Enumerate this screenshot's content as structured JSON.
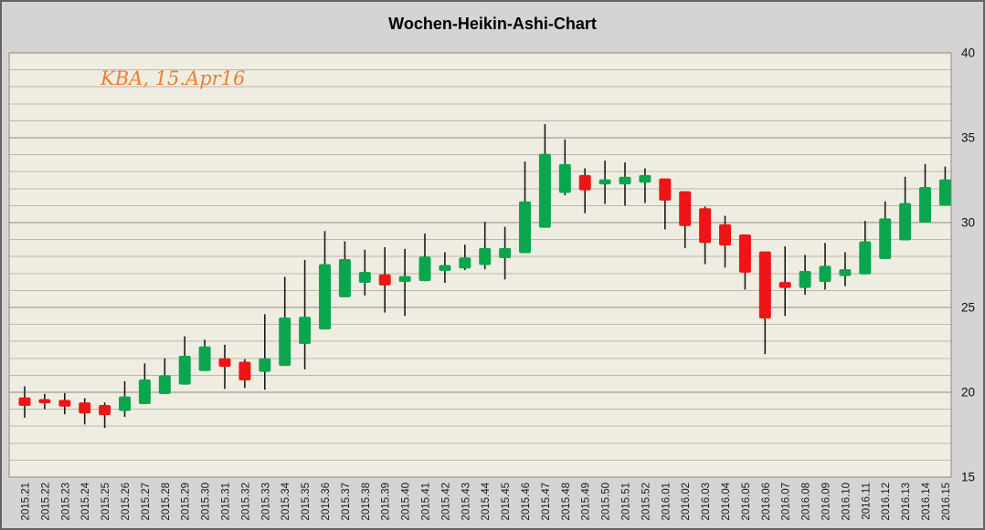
{
  "chart_data": {
    "type": "candlestick",
    "title": "Wochen-Heikin-Ashi-Chart",
    "annotation": "KBA, 15.Apr16",
    "annotation_color": "#ED7D31",
    "xlabel": "",
    "ylabel": "",
    "ylim": [
      15,
      40
    ],
    "y_ticks": [
      15,
      20,
      25,
      30,
      35,
      40
    ],
    "grid_minor_step": 1,
    "grid_major_step": 5,
    "y_axis_position": "right",
    "x_label_rotation": -90,
    "legend": "none",
    "up_color": "#0aa64e",
    "down_color": "#ed1515",
    "wick_color": "#1a1a1a",
    "plot_bg": "#efede1",
    "outer_bg": "#d5d4d2",
    "grid_minor_color": "#bab9af",
    "grid_major_color": "#8a8a85",
    "categories": [
      "2015.21",
      "2015.22",
      "2015.23",
      "2015.24",
      "2015.25",
      "2015.26",
      "2015.27",
      "2015.28",
      "2015.29",
      "2015.30",
      "2015.31",
      "2015.32",
      "2015.33",
      "2015.34",
      "2015.35",
      "2015.36",
      "2015.37",
      "2015.38",
      "2015.39",
      "2015.40",
      "2015.41",
      "2015.42",
      "2015.43",
      "2015.44",
      "2015.45",
      "2015.46",
      "2015.47",
      "2015.48",
      "2015.49",
      "2015.50",
      "2015.51",
      "2015.52",
      "2016.01",
      "2016.02",
      "2016.03",
      "2016.04",
      "2016.05",
      "2016.06",
      "2016.07",
      "2016.08",
      "2016.09",
      "2016.10",
      "2016.11",
      "2016.12",
      "2016.13",
      "2016.14",
      "2016.15"
    ],
    "ohlc": [
      [
        19.7,
        20.35,
        18.5,
        19.2
      ],
      [
        19.6,
        19.9,
        19.0,
        19.35
      ],
      [
        19.55,
        19.95,
        18.7,
        19.15
      ],
      [
        19.4,
        19.65,
        18.1,
        18.75
      ],
      [
        19.25,
        19.4,
        17.9,
        18.65
      ],
      [
        18.9,
        20.65,
        18.55,
        19.75
      ],
      [
        19.3,
        21.7,
        19.3,
        20.75
      ],
      [
        19.9,
        22.0,
        19.9,
        21.0
      ],
      [
        20.45,
        23.3,
        20.45,
        22.15
      ],
      [
        21.25,
        23.1,
        21.25,
        22.7
      ],
      [
        22.0,
        22.8,
        20.2,
        21.5
      ],
      [
        21.8,
        21.95,
        20.25,
        20.7
      ],
      [
        21.2,
        24.6,
        20.15,
        22.0
      ],
      [
        21.55,
        26.8,
        21.55,
        24.4
      ],
      [
        22.85,
        27.8,
        21.35,
        24.45
      ],
      [
        23.7,
        29.5,
        23.7,
        27.55
      ],
      [
        25.6,
        28.9,
        25.6,
        27.85
      ],
      [
        26.45,
        28.4,
        25.7,
        27.1
      ],
      [
        26.95,
        28.55,
        24.7,
        26.3
      ],
      [
        26.5,
        28.45,
        24.5,
        26.85
      ],
      [
        26.55,
        29.35,
        26.55,
        28.0
      ],
      [
        27.15,
        28.25,
        26.45,
        27.5
      ],
      [
        27.3,
        28.7,
        27.2,
        27.95
      ],
      [
        27.5,
        30.05,
        27.25,
        28.5
      ],
      [
        27.9,
        29.75,
        26.65,
        28.5
      ],
      [
        28.2,
        33.6,
        28.2,
        31.25
      ],
      [
        29.7,
        35.8,
        29.7,
        34.05
      ],
      [
        31.75,
        34.9,
        31.6,
        33.45
      ],
      [
        32.8,
        33.2,
        30.55,
        31.9
      ],
      [
        32.25,
        33.65,
        31.1,
        32.55
      ],
      [
        32.25,
        33.55,
        31.0,
        32.7
      ],
      [
        32.35,
        33.2,
        31.15,
        32.8
      ],
      [
        32.6,
        32.6,
        29.6,
        31.3
      ],
      [
        31.85,
        31.85,
        28.5,
        29.8
      ],
      [
        30.85,
        30.95,
        27.55,
        28.8
      ],
      [
        29.9,
        30.4,
        27.35,
        28.65
      ],
      [
        29.3,
        29.3,
        26.05,
        27.05
      ],
      [
        28.3,
        28.3,
        22.25,
        24.35
      ],
      [
        26.5,
        28.6,
        24.5,
        26.15
      ],
      [
        26.15,
        28.1,
        25.75,
        27.15
      ],
      [
        26.5,
        28.8,
        26.05,
        27.45
      ],
      [
        26.85,
        28.25,
        26.25,
        27.25
      ],
      [
        26.95,
        30.1,
        26.95,
        28.9
      ],
      [
        27.85,
        31.25,
        27.85,
        30.25
      ],
      [
        28.95,
        32.7,
        28.95,
        31.15
      ],
      [
        30.0,
        33.45,
        30.0,
        32.1
      ],
      [
        31.0,
        33.3,
        31.0,
        32.55
      ]
    ]
  }
}
